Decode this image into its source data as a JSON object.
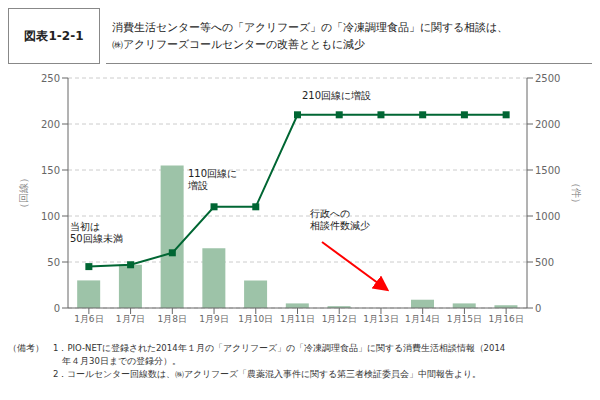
{
  "chart_data": {
    "type": "bar",
    "title": "図表1-2-1",
    "subtitle": "消費生活センター等への「アクリフーズ」の「冷凍調理食品」に関する相談は、\n㈱アクリフーズコールセンターの改善とともに減少",
    "categories": [
      "1月6日",
      "1月7日",
      "1月8日",
      "1月9日",
      "1月10日",
      "1月11日",
      "1月12日",
      "1月13日",
      "1月14日",
      "1月15日",
      "1月16日"
    ],
    "series": [
      {
        "type": "bar",
        "color": "#9dc3a8",
        "values": [
          30,
          47,
          155,
          65,
          30,
          5,
          2,
          0,
          9,
          5,
          3
        ]
      },
      {
        "type": "line",
        "color": "#006633",
        "marker": "square",
        "values": [
          45,
          47,
          60,
          110,
          110,
          210,
          210,
          210,
          210,
          210,
          210
        ]
      }
    ],
    "ylabel": "（回線）",
    "y2label": "（件）",
    "ylim": [
      0,
      250
    ],
    "yticks": [
      0,
      50,
      100,
      150,
      200,
      250
    ],
    "y2lim": [
      0,
      2500
    ],
    "y2ticks": [
      0,
      500,
      1000,
      1500,
      2000,
      2500
    ],
    "grid": true,
    "annotations": [
      "当初は\n50回線未満",
      "110回線に\n増設",
      "210回線に増設",
      "行政への\n相談件数減少"
    ],
    "footnotes": [
      "（備考）　1．PIO-NETに登録された2014年１月の「アクリフーズ」の「冷凍調理食品」に関する消費生活相談情報（2014",
      "　　　　　　年４月30日までの登録分）。",
      "　　　　　2．コールセンター回線数は、㈱アクリフーズ「農薬混入事件に関する第三者検証委員会」中間報告より。"
    ]
  }
}
